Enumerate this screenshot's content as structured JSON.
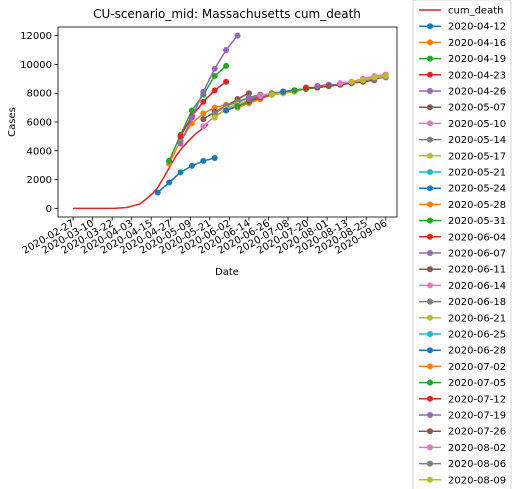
{
  "chart_data": {
    "type": "line",
    "title": "CU-scenario_mid: Massachusetts cum_death",
    "xlabel": "Date",
    "ylabel": "Cases",
    "x_range": [
      "2020-02-27",
      "2020-09-06"
    ],
    "ylim": [
      -600,
      12600
    ],
    "y_ticks": [
      0,
      2000,
      4000,
      6000,
      8000,
      10000,
      12000
    ],
    "x_ticks": [
      "2020-02-27",
      "2020-03-10",
      "2020-03-22",
      "2020-04-03",
      "2020-04-15",
      "2020-04-27",
      "2020-05-09",
      "2020-05-21",
      "2020-06-02",
      "2020-06-14",
      "2020-06-26",
      "2020-07-08",
      "2020-07-20",
      "2020-08-01",
      "2020-08-13",
      "2020-08-25",
      "2020-09-06"
    ],
    "grid": false,
    "legend_position": "outside-right",
    "colors": [
      "#d62728",
      "#1f77b4",
      "#ff7f0e",
      "#2ca02c",
      "#d62728",
      "#9467bd",
      "#8c564b",
      "#e377c2",
      "#7f7f7f",
      "#bcbd22",
      "#17becf"
    ],
    "series": [
      {
        "name": "cum_death",
        "color": "#d62728",
        "marker": false,
        "x": [
          "2020-02-27",
          "2020-03-03",
          "2020-03-10",
          "2020-03-17",
          "2020-03-24",
          "2020-03-31",
          "2020-04-03",
          "2020-04-08",
          "2020-04-12",
          "2020-04-16",
          "2020-04-19",
          "2020-04-23",
          "2020-04-27",
          "2020-04-30",
          "2020-05-04",
          "2020-05-08",
          "2020-05-12",
          "2020-05-16",
          "2020-05-20"
        ],
        "y": [
          0,
          0,
          0,
          0,
          5,
          60,
          150,
          300,
          650,
          1050,
          1450,
          2200,
          3000,
          3600,
          4200,
          4700,
          5150,
          5500,
          5850
        ]
      },
      {
        "name": "2020-04-12",
        "color": "#1f77b4",
        "x": [
          "2020-04-19",
          "2020-04-26",
          "2020-05-03",
          "2020-05-10",
          "2020-05-17",
          "2020-05-24"
        ],
        "y": [
          1100,
          1800,
          2500,
          2950,
          3300,
          3500
        ]
      },
      {
        "name": "2020-04-16",
        "color": "#ff7f0e",
        "x": [
          "2020-04-26",
          "2020-05-03",
          "2020-05-10",
          "2020-05-17",
          "2020-05-24",
          "2020-05-31"
        ],
        "y": [
          3100,
          4700,
          5900,
          6600,
          7000,
          7200
        ]
      },
      {
        "name": "2020-04-19",
        "color": "#2ca02c",
        "x": [
          "2020-04-26",
          "2020-05-03",
          "2020-05-10",
          "2020-05-17",
          "2020-05-24",
          "2020-05-31"
        ],
        "y": [
          3300,
          5100,
          6800,
          7900,
          9200,
          9900
        ]
      },
      {
        "name": "2020-04-23",
        "color": "#d62728",
        "x": [
          "2020-05-03",
          "2020-05-10",
          "2020-05-17",
          "2020-05-24",
          "2020-05-31"
        ],
        "y": [
          5000,
          6400,
          7400,
          8200,
          8800
        ]
      },
      {
        "name": "2020-04-26",
        "color": "#9467bd",
        "x": [
          "2020-05-03",
          "2020-05-10",
          "2020-05-17",
          "2020-05-24",
          "2020-05-31",
          "2020-06-07"
        ],
        "y": [
          4500,
          6300,
          8100,
          9700,
          11000,
          12000
        ]
      },
      {
        "name": "2020-05-07",
        "color": "#8c564b",
        "x": [
          "2020-05-17",
          "2020-05-24",
          "2020-05-31",
          "2020-06-07",
          "2020-06-14"
        ],
        "y": [
          6200,
          6700,
          7100,
          7600,
          8000
        ]
      },
      {
        "name": "2020-05-10",
        "color": "#e377c2",
        "x": [
          "2020-05-17",
          "2020-05-24",
          "2020-05-31",
          "2020-06-07",
          "2020-06-14",
          "2020-06-21"
        ],
        "y": [
          5700,
          6400,
          6900,
          7300,
          7700,
          7900
        ]
      },
      {
        "name": "2020-05-14",
        "color": "#7f7f7f",
        "x": [
          "2020-05-24",
          "2020-05-31",
          "2020-06-07",
          "2020-06-14",
          "2020-06-21"
        ],
        "y": [
          6600,
          7100,
          7400,
          7700,
          7900
        ]
      },
      {
        "name": "2020-05-17",
        "color": "#bcbd22",
        "x": [
          "2020-05-24",
          "2020-05-31",
          "2020-06-07",
          "2020-06-14",
          "2020-06-21"
        ],
        "y": [
          6300,
          6900,
          7200,
          7500,
          7800
        ]
      },
      {
        "name": "2020-05-21",
        "color": "#17becf",
        "x": [
          "2020-05-31",
          "2020-06-07",
          "2020-06-14",
          "2020-06-21",
          "2020-06-28"
        ],
        "y": [
          6800,
          7100,
          7400,
          7700,
          7900
        ]
      },
      {
        "name": "2020-05-24",
        "color": "#1f77b4",
        "x": [
          "2020-05-31",
          "2020-06-07",
          "2020-06-14",
          "2020-06-21",
          "2020-06-28"
        ],
        "y": [
          6800,
          7100,
          7400,
          7600,
          7900
        ]
      },
      {
        "name": "2020-05-28",
        "color": "#ff7f0e",
        "x": [
          "2020-06-07",
          "2020-06-14",
          "2020-06-21",
          "2020-06-28",
          "2020-07-05"
        ],
        "y": [
          7000,
          7300,
          7600,
          7900,
          8000
        ]
      },
      {
        "name": "2020-05-31",
        "color": "#2ca02c",
        "x": [
          "2020-06-07",
          "2020-06-14",
          "2020-06-21",
          "2020-06-28",
          "2020-07-05"
        ],
        "y": [
          7100,
          7400,
          7700,
          7900,
          8100
        ]
      },
      {
        "name": "2020-06-04",
        "color": "#d62728",
        "x": [
          "2020-06-14",
          "2020-06-21",
          "2020-06-28",
          "2020-07-05",
          "2020-07-12"
        ],
        "y": [
          7500,
          7700,
          7900,
          8100,
          8200
        ]
      },
      {
        "name": "2020-06-07",
        "color": "#9467bd",
        "x": [
          "2020-06-14",
          "2020-06-21",
          "2020-06-28",
          "2020-07-05",
          "2020-07-12"
        ],
        "y": [
          7600,
          7800,
          8000,
          8100,
          8200
        ]
      },
      {
        "name": "2020-06-11",
        "color": "#8c564b",
        "x": [
          "2020-06-21",
          "2020-06-28",
          "2020-07-05",
          "2020-07-12",
          "2020-07-19"
        ],
        "y": [
          7700,
          7900,
          8100,
          8200,
          8300
        ]
      },
      {
        "name": "2020-06-14",
        "color": "#e377c2",
        "x": [
          "2020-06-21",
          "2020-06-28",
          "2020-07-05",
          "2020-07-12",
          "2020-07-19"
        ],
        "y": [
          7800,
          8000,
          8100,
          8200,
          8300
        ]
      },
      {
        "name": "2020-06-18",
        "color": "#7f7f7f",
        "x": [
          "2020-06-28",
          "2020-07-05",
          "2020-07-12",
          "2020-07-19",
          "2020-07-26"
        ],
        "y": [
          8000,
          8100,
          8200,
          8300,
          8400
        ]
      },
      {
        "name": "2020-06-21",
        "color": "#bcbd22",
        "x": [
          "2020-06-28",
          "2020-07-05",
          "2020-07-12",
          "2020-07-19",
          "2020-07-26"
        ],
        "y": [
          7900,
          8000,
          8100,
          8300,
          8400
        ]
      },
      {
        "name": "2020-06-25",
        "color": "#17becf",
        "x": [
          "2020-07-05",
          "2020-07-12",
          "2020-07-19",
          "2020-07-26",
          "2020-08-02"
        ],
        "y": [
          8100,
          8200,
          8300,
          8400,
          8500
        ]
      },
      {
        "name": "2020-06-28",
        "color": "#1f77b4",
        "x": [
          "2020-07-05",
          "2020-07-12",
          "2020-07-19",
          "2020-07-26",
          "2020-08-02"
        ],
        "y": [
          8100,
          8200,
          8300,
          8400,
          8500
        ]
      },
      {
        "name": "2020-07-02",
        "color": "#ff7f0e",
        "x": [
          "2020-07-12",
          "2020-07-19",
          "2020-07-26",
          "2020-08-02",
          "2020-08-09"
        ],
        "y": [
          8200,
          8300,
          8400,
          8500,
          8600
        ]
      },
      {
        "name": "2020-07-05",
        "color": "#2ca02c",
        "x": [
          "2020-07-12",
          "2020-07-19",
          "2020-07-26",
          "2020-08-02",
          "2020-08-09"
        ],
        "y": [
          8200,
          8300,
          8400,
          8500,
          8600
        ]
      },
      {
        "name": "2020-07-12",
        "color": "#d62728",
        "x": [
          "2020-07-19",
          "2020-07-26",
          "2020-08-02",
          "2020-08-09",
          "2020-08-16"
        ],
        "y": [
          8400,
          8400,
          8500,
          8600,
          8700
        ]
      },
      {
        "name": "2020-07-19",
        "color": "#9467bd",
        "x": [
          "2020-07-26",
          "2020-08-02",
          "2020-08-09",
          "2020-08-16",
          "2020-08-23"
        ],
        "y": [
          8500,
          8600,
          8600,
          8700,
          8800
        ]
      },
      {
        "name": "2020-07-26",
        "color": "#8c564b",
        "x": [
          "2020-08-02",
          "2020-08-09",
          "2020-08-16",
          "2020-08-23",
          "2020-08-30"
        ],
        "y": [
          8500,
          8600,
          8700,
          8800,
          8900
        ]
      },
      {
        "name": "2020-08-02",
        "color": "#e377c2",
        "x": [
          "2020-08-09",
          "2020-08-16",
          "2020-08-23",
          "2020-08-30",
          "2020-09-06"
        ],
        "y": [
          8700,
          8800,
          9000,
          9200,
          9300
        ]
      },
      {
        "name": "2020-08-06",
        "color": "#7f7f7f",
        "x": [
          "2020-08-16",
          "2020-08-23",
          "2020-08-30",
          "2020-09-06"
        ],
        "y": [
          8800,
          8900,
          9000,
          9100
        ]
      },
      {
        "name": "2020-08-09",
        "color": "#bcbd22",
        "x": [
          "2020-08-16",
          "2020-08-23",
          "2020-08-30",
          "2020-09-06"
        ],
        "y": [
          8800,
          8900,
          9100,
          9200
        ]
      }
    ]
  }
}
